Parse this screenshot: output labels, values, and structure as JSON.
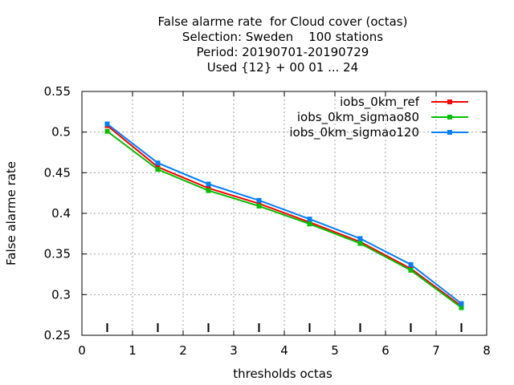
{
  "chart_data": {
    "type": "line",
    "title_lines": [
      "False alarme rate  for Cloud cover (octas)",
      "Selection: Sweden    100 stations",
      "Period: 20190701-20190729",
      "Used {12} + 00 01 ... 24"
    ],
    "xlabel": "thresholds octas",
    "ylabel": "False alarme rate",
    "xlim": [
      0,
      8
    ],
    "ylim": [
      0.25,
      0.55
    ],
    "x_ticks": [
      0,
      1,
      2,
      3,
      4,
      5,
      6,
      7,
      8
    ],
    "y_ticks": [
      0.25,
      0.3,
      0.35,
      0.4,
      0.45,
      0.5,
      0.55
    ],
    "x_tick_labels": [
      "0",
      "1",
      "2",
      "3",
      "4",
      "5",
      "6",
      "7",
      "8"
    ],
    "y_tick_labels": [
      "0.25",
      "0.3",
      "0.35",
      "0.4",
      "0.45",
      "0.5",
      "0.55"
    ],
    "grid": true,
    "legend_position": "top-right",
    "x": [
      0.5,
      1.5,
      2.5,
      3.5,
      4.5,
      5.5,
      6.5,
      7.5
    ],
    "series": [
      {
        "name": "iobs_0km_ref",
        "color": "#ff0000",
        "values": [
          0.508,
          0.457,
          0.431,
          0.412,
          0.389,
          0.365,
          0.332,
          0.286
        ]
      },
      {
        "name": "iobs_0km_sigmao80",
        "color": "#00c000",
        "values": [
          0.501,
          0.454,
          0.428,
          0.409,
          0.387,
          0.363,
          0.33,
          0.284
        ]
      },
      {
        "name": "iobs_0km_sigmao120",
        "color": "#0080ff",
        "values": [
          0.51,
          0.462,
          0.436,
          0.416,
          0.393,
          0.369,
          0.337,
          0.289
        ]
      }
    ]
  }
}
